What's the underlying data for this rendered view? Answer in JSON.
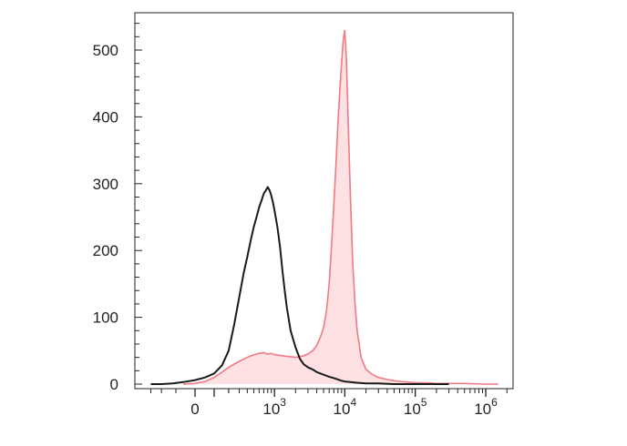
{
  "chart_data": {
    "type": "area",
    "title": "",
    "xlabel": "",
    "ylabel": "",
    "x_scale": "biexponential",
    "xlim": [
      -400,
      2000000
    ],
    "ylim": [
      -10,
      545
    ],
    "grid": false,
    "legend": "none",
    "y_ticks": [
      {
        "value": 0,
        "label": "0"
      },
      {
        "value": 100,
        "label": "100"
      },
      {
        "value": 200,
        "label": "200"
      },
      {
        "value": 300,
        "label": "300"
      },
      {
        "value": 400,
        "label": "400"
      },
      {
        "value": 500,
        "label": "500"
      }
    ],
    "x_ticks": [
      {
        "value": 0,
        "base": "0",
        "exp": ""
      },
      {
        "value": 1000,
        "base": "10",
        "exp": "3"
      },
      {
        "value": 10000,
        "base": "10",
        "exp": "4"
      },
      {
        "value": 100000,
        "base": "10",
        "exp": "5"
      },
      {
        "value": 1000000,
        "base": "10",
        "exp": "6"
      }
    ],
    "series": [
      {
        "style": "filled",
        "color": "#f07a83",
        "fill": "#fde1e3",
        "x": [
          -60,
          0,
          50,
          100,
          150,
          200,
          250,
          300,
          400,
          500,
          600,
          700,
          800,
          900,
          1000,
          1200,
          1400,
          1700,
          2000,
          2500,
          3000,
          3500,
          4000,
          4500,
          5000,
          5500,
          6000,
          6500,
          7000,
          7500,
          8000,
          8500,
          9000,
          9500,
          10000,
          10500,
          11000,
          12000,
          13000,
          14000,
          15000,
          17000,
          20000,
          25000,
          30000,
          40000,
          50000,
          60000,
          80000,
          100000,
          150000,
          200000,
          300000,
          500000,
          1000000,
          1500000
        ],
        "y": [
          0,
          1,
          4,
          10,
          18,
          25,
          30,
          34,
          40,
          44,
          46,
          47,
          45,
          46,
          44,
          43,
          42,
          41,
          40,
          42,
          45,
          50,
          58,
          70,
          85,
          110,
          150,
          210,
          270,
          330,
          390,
          440,
          480,
          515,
          530,
          490,
          420,
          280,
          180,
          120,
          80,
          40,
          22,
          14,
          10,
          7,
          5,
          4,
          3,
          2,
          2,
          1,
          1,
          1,
          0,
          0
        ]
      },
      {
        "style": "line",
        "color": "#1a1a1a",
        "x": [
          -300,
          -200,
          -120,
          -60,
          0,
          50,
          100,
          150,
          200,
          250,
          300,
          350,
          400,
          450,
          500,
          550,
          600,
          650,
          700,
          750,
          800,
          850,
          900,
          950,
          1000,
          1100,
          1200,
          1300,
          1400,
          1500,
          1700,
          2000,
          2300,
          2600,
          3000,
          3500,
          4000,
          5000,
          6000,
          7000,
          8000,
          9000,
          10000,
          12000,
          15000,
          20000,
          30000,
          50000,
          100000,
          300000
        ],
        "y": [
          0,
          0,
          1,
          3,
          6,
          10,
          16,
          28,
          50,
          90,
          130,
          165,
          190,
          215,
          235,
          250,
          265,
          275,
          285,
          290,
          295,
          290,
          282,
          272,
          260,
          235,
          205,
          170,
          140,
          115,
          80,
          55,
          38,
          30,
          25,
          22,
          18,
          14,
          11,
          9,
          7,
          5,
          4,
          3,
          2,
          1,
          1,
          0,
          0,
          0
        ]
      }
    ]
  }
}
